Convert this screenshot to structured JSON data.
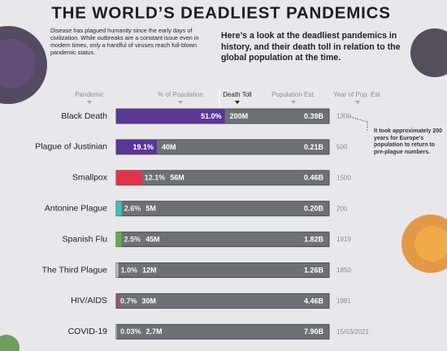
{
  "chart_data": {
    "type": "bar",
    "title": "THE WORLD’S DEADLIEST PANDEMICS",
    "intro": "Disease has plagued humanity since the early days of civilization. While outbreaks are a constant issue even in modern times, only a handful of viruses reach full-blown pandemic status.",
    "subtitle": "Here’s a look at the deadliest pandemics in history, and their death toll in relation to the global population at the time.",
    "columns": [
      "Pandemic",
      "% of Population",
      "Death Toll",
      "Population Est.",
      "Year of Pop. Est."
    ],
    "categories": [
      "Black Death",
      "Plague of Justinian",
      "Smallpox",
      "Antonine Plague",
      "Spanish Flu",
      "The Third Plague",
      "HIV/AIDS",
      "COVID-19"
    ],
    "values": [
      51.0,
      19.1,
      12.1,
      2.6,
      2.5,
      1.0,
      0.7,
      0.03
    ],
    "value_labels": [
      "51.0%",
      "19.1%",
      "12.1%",
      "2.6%",
      "2.5%",
      "1.0%",
      "0.7%",
      "0.03%"
    ],
    "colors": [
      "#5a3795",
      "#5a3795",
      "#e2334b",
      "#3dbfb1",
      "#62ad4c",
      "#b9bcc2",
      "#c2336c",
      "#b9bcc2"
    ],
    "death_toll": [
      "200M",
      "40M",
      "56M",
      "5M",
      "45M",
      "12M",
      "30M",
      "2.7M"
    ],
    "population": [
      "0.39B",
      "0.21B",
      "0.46B",
      "0.20B",
      "1.82B",
      "1.26B",
      "4.46B",
      "7.90B"
    ],
    "year": [
      "1300",
      "500",
      "1500",
      "200",
      "1919",
      "1850",
      "1981",
      "15/03/2021"
    ],
    "xlim": [
      0,
      100
    ],
    "annotation": "It took approximately 200 years for Europe's population to return to pre-plague numbers."
  }
}
